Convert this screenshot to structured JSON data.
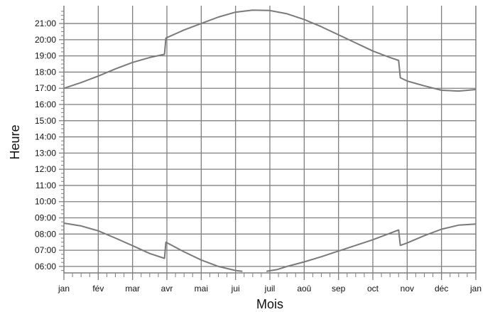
{
  "chart_data": {
    "type": "line",
    "title": "",
    "xlabel": "Mois",
    "ylabel": "Heure",
    "x_tick_labels": [
      "jan",
      "fév",
      "mar",
      "avr",
      "mai",
      "jui",
      "juil",
      "aoû",
      "sep",
      "oct",
      "nov",
      "déc",
      "jan"
    ],
    "y_tick_labels": [
      "06:00",
      "07:00",
      "08:00",
      "09:00",
      "10:00",
      "11:00",
      "12:00",
      "13:00",
      "14:00",
      "15:00",
      "16:00",
      "17:00",
      "18:00",
      "19:00",
      "20:00",
      "21:00"
    ],
    "y_unit": "hours",
    "xlim": [
      0,
      12
    ],
    "ylim": [
      5.6,
      22.1
    ],
    "grid": true,
    "line_color": "#7a7a7a",
    "grid_color": "#7f7f7f",
    "series": [
      {
        "points": [
          [
            0,
            17.0
          ],
          [
            0.5,
            17.35
          ],
          [
            1,
            17.75
          ],
          [
            1.5,
            18.2
          ],
          [
            2,
            18.6
          ],
          [
            2.5,
            18.9
          ],
          [
            2.93,
            19.1
          ],
          [
            2.97,
            20.1
          ],
          [
            3.5,
            20.6
          ],
          [
            4,
            21.0
          ],
          [
            4.5,
            21.4
          ],
          [
            5,
            21.7
          ],
          [
            5.5,
            21.83
          ],
          [
            6,
            21.8
          ],
          [
            6.5,
            21.6
          ],
          [
            7,
            21.25
          ],
          [
            7.5,
            20.8
          ],
          [
            8,
            20.3
          ],
          [
            8.5,
            19.8
          ],
          [
            9,
            19.3
          ],
          [
            9.5,
            18.9
          ],
          [
            9.75,
            18.72
          ],
          [
            9.8,
            17.65
          ],
          [
            10,
            17.45
          ],
          [
            10.5,
            17.15
          ],
          [
            11,
            16.88
          ],
          [
            11.5,
            16.83
          ],
          [
            12,
            16.92
          ]
        ]
      },
      {
        "points": [
          [
            0,
            8.67
          ],
          [
            0.5,
            8.5
          ],
          [
            1,
            8.2
          ],
          [
            1.5,
            7.75
          ],
          [
            2,
            7.28
          ],
          [
            2.5,
            6.8
          ],
          [
            2.93,
            6.5
          ],
          [
            2.97,
            7.5
          ],
          [
            3.5,
            6.9
          ],
          [
            4,
            6.4
          ],
          [
            4.5,
            6.0
          ],
          [
            5,
            5.75
          ],
          [
            5.2,
            5.7
          ]
        ]
      },
      {
        "points": [
          [
            5.9,
            5.7
          ],
          [
            6.2,
            5.8
          ],
          [
            6.5,
            6.0
          ],
          [
            7,
            6.28
          ],
          [
            7.5,
            6.6
          ],
          [
            8,
            6.95
          ],
          [
            8.5,
            7.3
          ],
          [
            9,
            7.65
          ],
          [
            9.5,
            8.05
          ],
          [
            9.75,
            8.25
          ],
          [
            9.8,
            7.3
          ],
          [
            10,
            7.45
          ],
          [
            10.5,
            7.9
          ],
          [
            11,
            8.3
          ],
          [
            11.5,
            8.55
          ],
          [
            12,
            8.62
          ]
        ]
      }
    ]
  }
}
